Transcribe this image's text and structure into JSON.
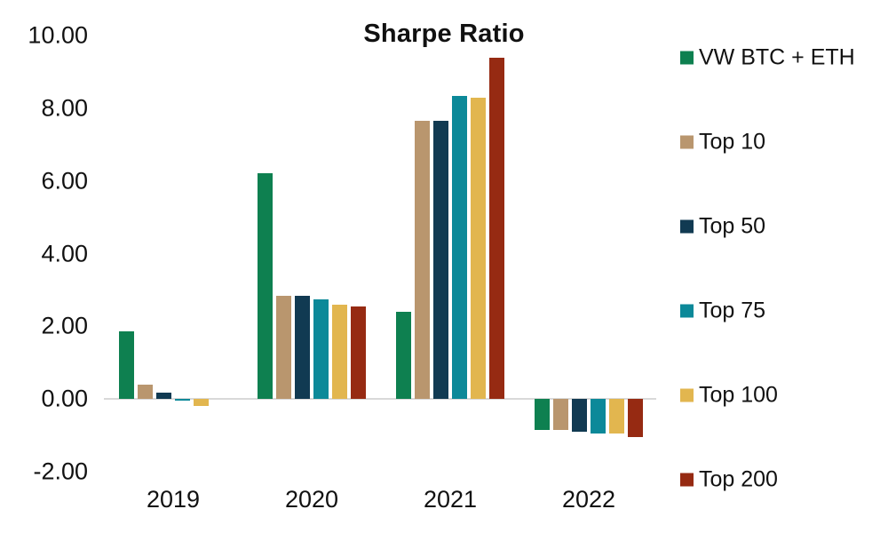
{
  "title": "Sharpe Ratio",
  "chart_data": {
    "type": "bar",
    "title": "Sharpe Ratio",
    "xlabel": "",
    "ylabel": "",
    "categories": [
      "2019",
      "2020",
      "2021",
      "2022"
    ],
    "series": [
      {
        "name": "VW BTC + ETH",
        "color": "#0e8050",
        "values": [
          1.85,
          6.2,
          2.4,
          -0.85
        ]
      },
      {
        "name": "Top 10",
        "color": "#b9966e",
        "values": [
          0.4,
          2.85,
          7.65,
          -0.85
        ]
      },
      {
        "name": "Top 50",
        "color": "#113a52",
        "values": [
          0.17,
          2.85,
          7.65,
          -0.9
        ]
      },
      {
        "name": "Top 75",
        "color": "#0c8999",
        "values": [
          -0.04,
          2.75,
          8.35,
          -0.95
        ]
      },
      {
        "name": "Top 100",
        "color": "#e2b64f",
        "values": [
          -0.2,
          2.6,
          8.3,
          -0.95
        ]
      },
      {
        "name": "Top 200",
        "color": "#962a12",
        "values": [
          0.0,
          2.55,
          9.4,
          -1.05
        ]
      }
    ],
    "ylim": [
      -2,
      10
    ],
    "yticks": [
      {
        "value": 10,
        "label": "10.00"
      },
      {
        "value": 8,
        "label": "8.00"
      },
      {
        "value": 6,
        "label": "6.00"
      },
      {
        "value": 4,
        "label": "4.00"
      },
      {
        "value": 2,
        "label": "2.00"
      },
      {
        "value": 0,
        "label": "0.00"
      },
      {
        "value": -2,
        "label": "-2.00"
      }
    ],
    "grid": "none",
    "baseline_at_zero": true,
    "legend_position": "right"
  },
  "colors": {
    "background": "#ffffff",
    "text": "#111111",
    "axis_line": "#d9d9d9"
  }
}
